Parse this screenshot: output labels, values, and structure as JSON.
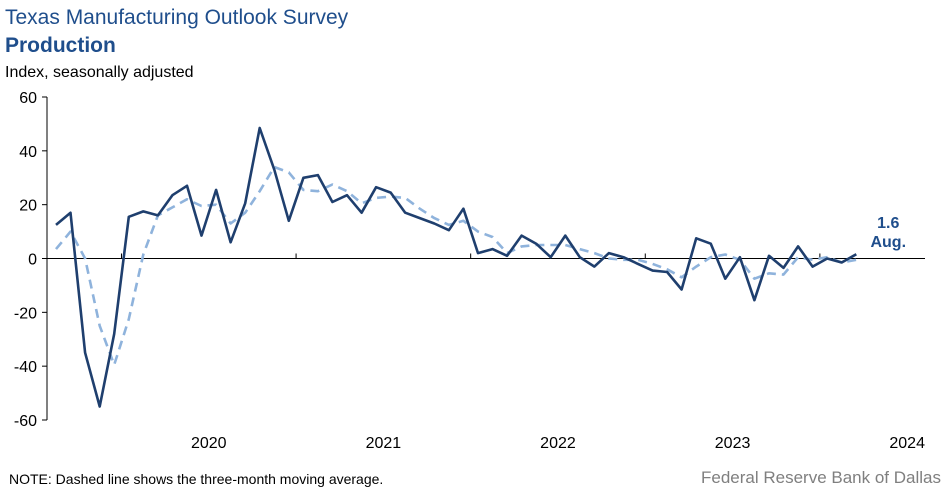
{
  "header": {
    "title": "Texas Manufacturing Outlook Survey",
    "subtitle": "Production",
    "ylabel": "Index, seasonally adjusted"
  },
  "footer": {
    "note": "NOTE: Dashed line shows the three-month  moving average.",
    "source": "Federal Reserve Bank of Dallas"
  },
  "colors": {
    "series_main": "#1f3f6e",
    "series_ma": "#8fb3dc",
    "text_accent": "#1f4e8c"
  },
  "chart_data": {
    "type": "line",
    "title": "Production",
    "ylabel": "Index, seasonally adjusted",
    "ylim": [
      -60,
      60
    ],
    "yticks": [
      60,
      40,
      20,
      0,
      -20,
      -40,
      -60
    ],
    "xticks": [
      "2020",
      "2021",
      "2022",
      "2023",
      "2024"
    ],
    "x_start": "2019-08",
    "x_end": "2024-08",
    "grid": false,
    "annotation": {
      "value": "1.6",
      "label": "Aug."
    },
    "series": [
      {
        "values": [
          12.5,
          17,
          -35,
          -55,
          -28,
          15.5,
          17.5,
          16,
          23.5,
          27,
          8.5,
          25.5,
          6,
          20.5,
          48.5,
          33,
          14,
          30,
          31,
          21,
          23.5,
          17,
          26.5,
          24.5,
          17,
          15,
          13,
          10.5,
          18.5,
          2,
          3.5,
          1,
          8.5,
          5.5,
          0.5,
          8.5,
          0.5,
          -3,
          2,
          0.5,
          -2,
          -4.5,
          -5,
          -11.5,
          7.5,
          5.5,
          -7.5,
          0.5,
          -15.5,
          1,
          -3.5,
          4.5,
          -3,
          0,
          -1.5,
          1.6
        ]
      },
      {
        "values": [
          3.5,
          10,
          0,
          -25,
          -39.5,
          -22.5,
          1.5,
          16,
          19,
          22,
          19.5,
          20,
          13,
          17,
          25,
          34,
          32,
          25.5,
          25,
          27.5,
          25,
          20.5,
          22.5,
          23,
          22.5,
          18.5,
          15,
          12.5,
          14,
          10,
          8,
          2,
          4.5,
          5,
          5,
          5,
          3.5,
          2,
          0,
          -0.5,
          -0.5,
          -2,
          -4,
          -7,
          -3,
          0.5,
          1.5,
          -0.5,
          -7.5,
          -5.5,
          -6,
          0.5,
          -0.5,
          0.5,
          -1.5,
          -0.5
        ]
      }
    ]
  }
}
